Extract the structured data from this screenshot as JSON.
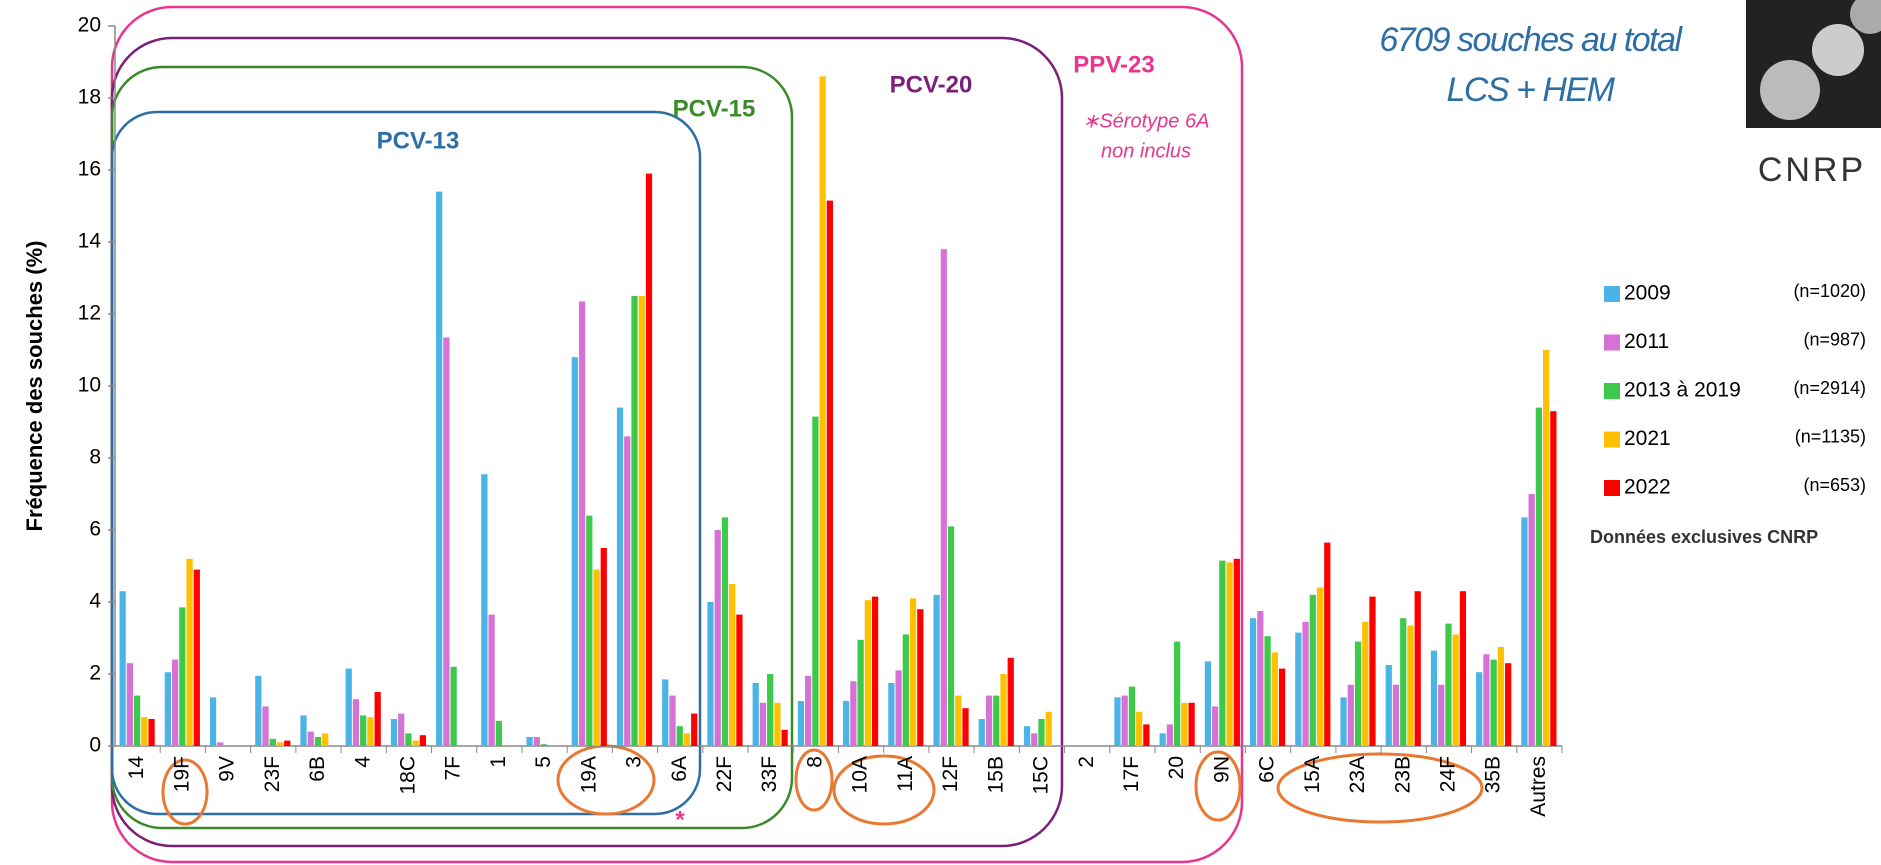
{
  "chart_data": {
    "type": "bar",
    "title": "6709 souches au total",
    "subtitle": "LCS + HEM",
    "y_label": "Fréquence des souches  (%)",
    "source_note": "Données exclusives CNRP",
    "logo_text": "CNRP",
    "annotations": {
      "pcv13": "PCV-13",
      "pcv15": "PCV-15",
      "pcv20": "PCV-20",
      "ppv23": "PPV-23",
      "note_line1": "∗Sérotype 6A",
      "note_line2": "non inclus",
      "asterisk": "*"
    },
    "categories": [
      "14",
      "19F",
      "9V",
      "23F",
      "6B",
      "4",
      "18C",
      "7F",
      "1",
      "5",
      "19A",
      "3",
      "6A",
      "22F",
      "33F",
      "8",
      "10A",
      "11A",
      "12F",
      "15B",
      "15C",
      "2",
      "17F",
      "20",
      "9N",
      "6C",
      "15A",
      "23A",
      "23B",
      "24F",
      "35B",
      "Autres"
    ],
    "series": [
      {
        "name": "2009",
        "n_label": "(n=1020)",
        "color": "#4ab4e6",
        "values": [
          4.3,
          2.05,
          1.35,
          1.95,
          0.85,
          2.15,
          0.75,
          15.4,
          7.55,
          0.25,
          10.8,
          9.4,
          1.85,
          4.0,
          1.75,
          1.25,
          1.25,
          1.75,
          4.2,
          0.75,
          0.55,
          0,
          1.35,
          0.35,
          2.35,
          3.55,
          3.15,
          1.35,
          2.25,
          2.65,
          2.05,
          6.35
        ]
      },
      {
        "name": "2011",
        "n_label": "(n=987)",
        "color": "#d672d6",
        "values": [
          2.3,
          2.4,
          0.1,
          1.1,
          0.4,
          1.3,
          0.9,
          11.35,
          3.65,
          0.25,
          12.35,
          8.6,
          1.4,
          6.0,
          1.2,
          1.95,
          1.8,
          2.1,
          13.8,
          1.4,
          0.35,
          0,
          1.4,
          0.6,
          1.1,
          3.75,
          3.45,
          1.7,
          1.7,
          1.7,
          2.55,
          7.0
        ]
      },
      {
        "name": "2013 à 2019",
        "n_label": "(n=2914)",
        "color": "#3dc94a",
        "values": [
          1.4,
          3.85,
          0,
          0.2,
          0.25,
          0.85,
          0.35,
          2.2,
          0.7,
          0.05,
          6.4,
          12.5,
          0.55,
          6.35,
          2.0,
          9.15,
          2.95,
          3.1,
          6.1,
          1.4,
          0.75,
          0,
          1.65,
          2.9,
          5.15,
          3.05,
          4.2,
          2.9,
          3.55,
          3.4,
          2.4,
          9.4
        ]
      },
      {
        "name": "2021",
        "n_label": "(n=1135)",
        "color": "#ffc000",
        "values": [
          0.8,
          5.2,
          0,
          0.1,
          0.35,
          0.8,
          0.15,
          0,
          0,
          0,
          4.9,
          12.5,
          0.35,
          4.5,
          1.2,
          18.6,
          4.05,
          4.1,
          1.4,
          2.0,
          0.95,
          0,
          0.95,
          1.2,
          5.1,
          2.6,
          4.4,
          3.45,
          3.35,
          3.1,
          2.75,
          11.0
        ]
      },
      {
        "name": "2022",
        "n_label": "(n=653)",
        "color": "#ff0000",
        "values": [
          0.75,
          4.9,
          0,
          0.15,
          0,
          1.5,
          0.3,
          0,
          0,
          0,
          5.5,
          15.9,
          0.9,
          3.65,
          0.45,
          15.15,
          4.15,
          3.8,
          1.05,
          2.45,
          0,
          0,
          0.6,
          1.2,
          5.2,
          2.15,
          5.65,
          4.15,
          4.3,
          4.3,
          2.3,
          9.3
        ]
      }
    ],
    "ylim": [
      0,
      20
    ],
    "yticks": [
      0,
      2,
      4,
      6,
      8,
      10,
      12,
      14,
      16,
      18,
      20
    ],
    "grid": false
  }
}
